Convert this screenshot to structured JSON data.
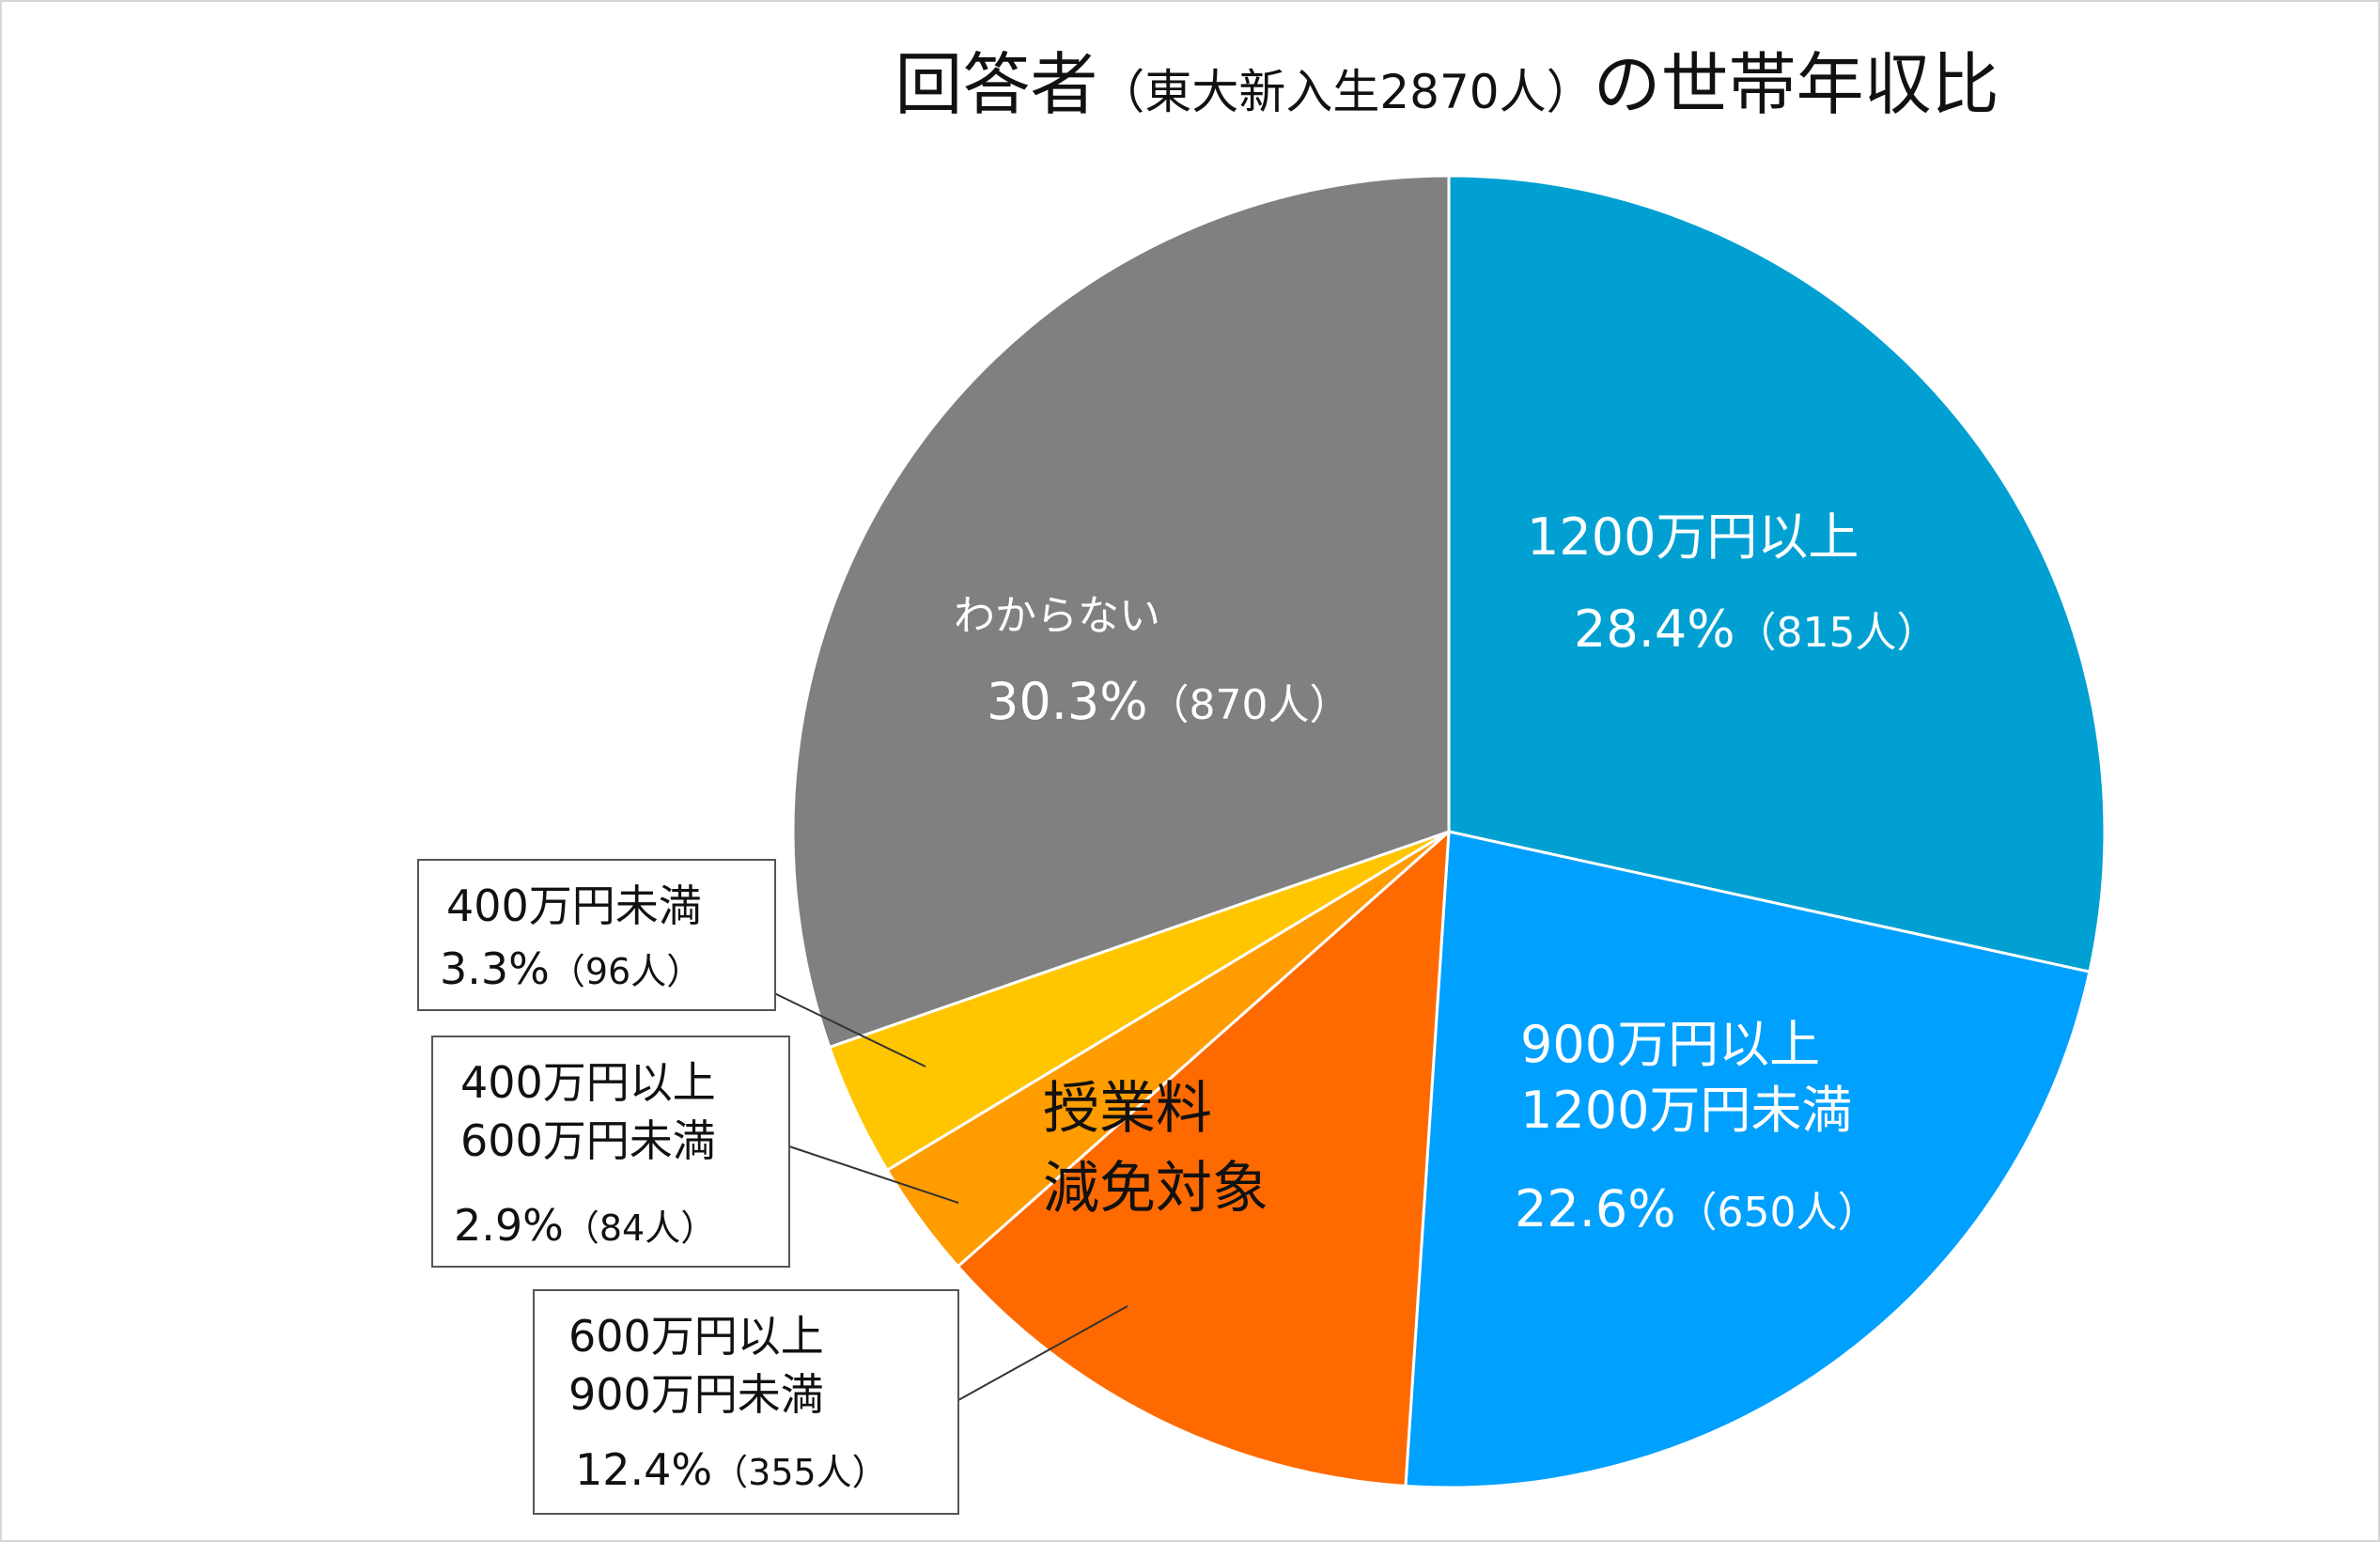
{
  "chart_data": {
    "type": "pie",
    "title": {
      "main_prefix": "回答者",
      "sub": "（東大新入生2870人）",
      "main_suffix": "の世帯年収比"
    },
    "slices": [
      {
        "label": "1200万円以上",
        "label_line2": "",
        "percent": 28.4,
        "percent_text": "28.4%",
        "count_text": "（815人）",
        "count": 815,
        "color": "#00A0D2"
      },
      {
        "label": "900万円以上",
        "label_line2": "1200万円未満",
        "percent": 22.6,
        "percent_text": "22.6%",
        "count_text": "（650人）",
        "count": 650,
        "color": "#00A0FF"
      },
      {
        "label": "600万円以上",
        "label_line2": "900万円未満",
        "percent": 12.4,
        "percent_text": "12.4%",
        "count_text": "（355人）",
        "count": 355,
        "color": "#FF6A00"
      },
      {
        "label": "400万円以上",
        "label_line2": "600万円未満",
        "percent": 2.9,
        "percent_text": "2.9%",
        "count_text": "（84人）",
        "count": 84,
        "color": "#FF9C00"
      },
      {
        "label": "400万円未満",
        "label_line2": "",
        "percent": 3.3,
        "percent_text": "3.3%",
        "count_text": "（96人）",
        "count": 96,
        "color": "#FFC600"
      },
      {
        "label": "わからない",
        "label_line2": "",
        "percent": 30.3,
        "percent_text": "30.3%",
        "count_text": "（870人）",
        "count": 870,
        "color": "#808080"
      }
    ],
    "annotation": {
      "line1": "授業料",
      "line2": "減免対象"
    }
  }
}
